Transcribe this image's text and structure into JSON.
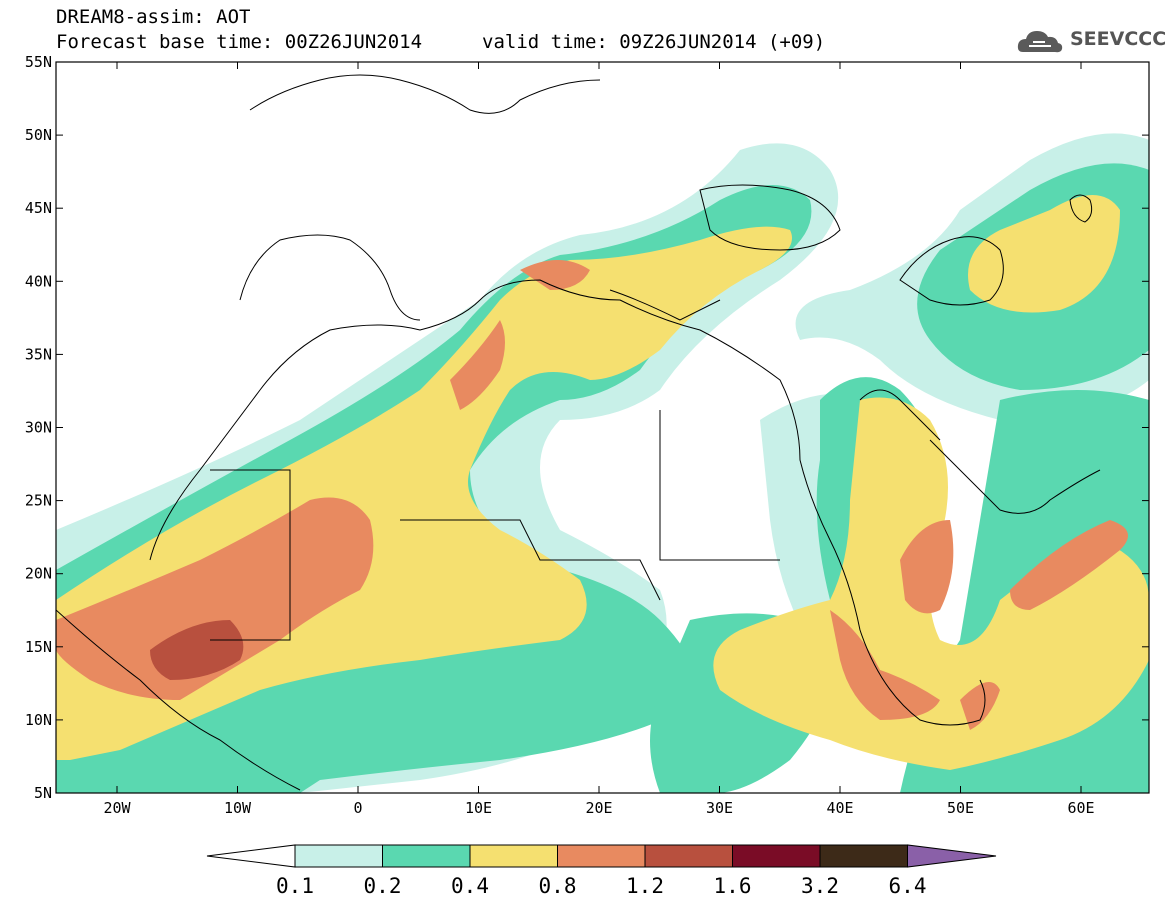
{
  "header": {
    "title_line1": "DREAM8-assim: AOT",
    "title_line2": "Forecast base time: 00Z26JUN2014",
    "valid_time": "valid time: 09Z26JUN2014 (+09)",
    "logo_text": "SEEVCCC"
  },
  "axes": {
    "lat_labels": [
      "55N",
      "50N",
      "45N",
      "40N",
      "35N",
      "30N",
      "25N",
      "20N",
      "15N",
      "10N",
      "5N"
    ],
    "lon_labels": [
      "20W",
      "10W",
      "0",
      "10E",
      "20E",
      "30E",
      "40E",
      "50E",
      "60E"
    ]
  },
  "colorbar": {
    "levels": [
      "0.1",
      "0.2",
      "0.4",
      "0.8",
      "1.2",
      "1.6",
      "3.2",
      "6.4"
    ],
    "colors": [
      "#ffffff",
      "#c8f0e8",
      "#5ad8b0",
      "#f5e070",
      "#e88a60",
      "#b8503e",
      "#7a0c26",
      "#3d2a18",
      "#8a60a8"
    ]
  },
  "colors": {
    "band1": "#c8f0e8",
    "band2": "#5ad8b0",
    "band3": "#f5e070",
    "band4": "#e88a60",
    "band5": "#b8503e"
  }
}
